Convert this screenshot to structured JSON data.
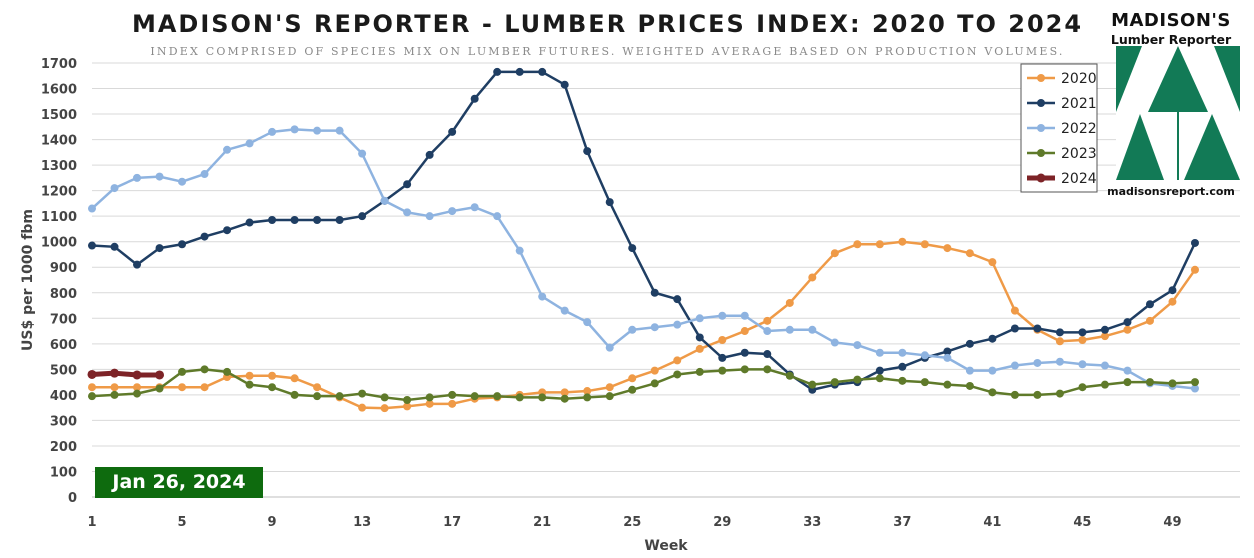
{
  "page": {
    "title": "MADISON'S REPORTER - LUMBER PRICES INDEX: 2020 TO 2024",
    "subtitle": "INDEX COMPRISED OF SPECIES MIX ON LUMBER FUTURES. WEIGHTED AVERAGE BASED ON PRODUCTION VOLUMES.",
    "date_badge": "Jan 26, 2024"
  },
  "logo": {
    "name": "MADISON'S",
    "subtitle": "Lumber Reporter",
    "url": "madisonsreport.com",
    "color": "#127a56"
  },
  "chart_data": {
    "type": "line",
    "title": "MADISON'S REPORTER - LUMBER PRICES INDEX: 2020 TO 2024",
    "subtitle": "INDEX COMPRISED OF SPECIES MIX ON LUMBER FUTURES. WEIGHTED AVERAGE BASED ON PRODUCTION VOLUMES.",
    "xlabel": "Week",
    "ylabel": "US$ per 1000 fbm",
    "xlim": [
      1,
      52
    ],
    "ylim": [
      0,
      1700
    ],
    "x_ticks": [
      1,
      5,
      9,
      13,
      17,
      21,
      25,
      29,
      33,
      37,
      41,
      45,
      49
    ],
    "y_ticks": [
      0,
      100,
      200,
      300,
      400,
      500,
      600,
      700,
      800,
      900,
      1000,
      1100,
      1200,
      1300,
      1400,
      1500,
      1600,
      1700
    ],
    "grid": "horizontal",
    "legend_position": "top-right",
    "series": [
      {
        "name": "2020",
        "color": "#ef9a47",
        "values": [
          430,
          430,
          430,
          430,
          430,
          430,
          470,
          475,
          475,
          465,
          430,
          390,
          350,
          348,
          355,
          365,
          365,
          385,
          390,
          400,
          410,
          410,
          415,
          430,
          465,
          495,
          535,
          580,
          615,
          650,
          690,
          760,
          860,
          955,
          990,
          990,
          1000,
          990,
          975,
          955,
          920,
          730,
          655,
          610,
          615,
          630,
          655,
          690,
          765,
          890
        ]
      },
      {
        "name": "2021",
        "color": "#1f3e63",
        "values": [
          985,
          980,
          910,
          975,
          990,
          1020,
          1045,
          1075,
          1085,
          1085,
          1085,
          1085,
          1100,
          1160,
          1225,
          1340,
          1430,
          1560,
          1665,
          1665,
          1665,
          1615,
          1355,
          1155,
          975,
          800,
          775,
          625,
          545,
          565,
          560,
          480,
          420,
          440,
          450,
          495,
          510,
          545,
          570,
          600,
          620,
          660,
          660,
          645,
          645,
          655,
          685,
          755,
          810,
          995
        ]
      },
      {
        "name": "2022",
        "color": "#8eb3e0",
        "values": [
          1130,
          1210,
          1250,
          1255,
          1235,
          1265,
          1360,
          1385,
          1430,
          1440,
          1435,
          1435,
          1345,
          1160,
          1115,
          1100,
          1120,
          1135,
          1100,
          965,
          785,
          730,
          685,
          585,
          655,
          665,
          675,
          700,
          710,
          710,
          650,
          655,
          655,
          605,
          595,
          565,
          565,
          555,
          545,
          495,
          495,
          515,
          525,
          530,
          520,
          515,
          495,
          445,
          435,
          425
        ]
      },
      {
        "name": "2023",
        "color": "#5f7a2a",
        "values": [
          395,
          400,
          405,
          425,
          490,
          500,
          490,
          440,
          430,
          400,
          395,
          395,
          405,
          390,
          380,
          390,
          400,
          395,
          395,
          390,
          390,
          385,
          390,
          395,
          420,
          445,
          480,
          490,
          495,
          500,
          500,
          475,
          440,
          450,
          460,
          465,
          455,
          450,
          440,
          435,
          410,
          400,
          400,
          405,
          430,
          440,
          450,
          450,
          445,
          450
        ]
      },
      {
        "name": "2024",
        "color": "#7d2327",
        "values": [
          480,
          485,
          478,
          478
        ]
      }
    ]
  }
}
